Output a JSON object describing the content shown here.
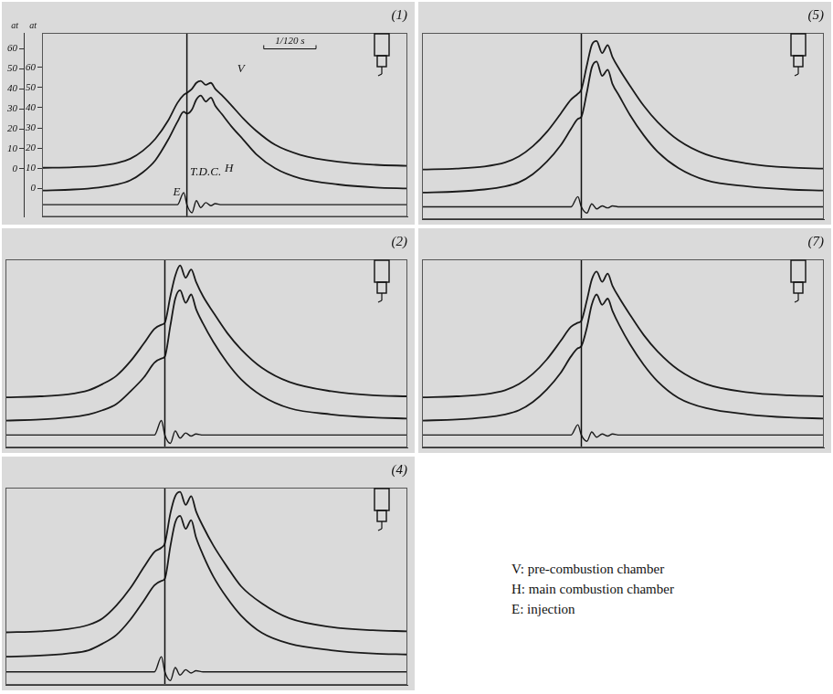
{
  "chart_data": [
    {
      "type": "line",
      "title": "(1)",
      "x": [
        -23,
        -18,
        -14,
        -11,
        -9,
        -7,
        -5,
        -3,
        -1.5,
        -0.5,
        0,
        0.8,
        1.5,
        2.2,
        3,
        3.8,
        4.5,
        5.5,
        7,
        9,
        11,
        14,
        18,
        24,
        30,
        35
      ],
      "xlim": [
        -23,
        35
      ],
      "xticks": [],
      "ylim": [
        -24,
        68
      ],
      "yticks": [
        0,
        10,
        20,
        30,
        40,
        50,
        60
      ],
      "ylabel": "at",
      "y2lim": [
        -14,
        77
      ],
      "y2ticks": [
        0,
        10,
        20,
        30,
        40,
        50,
        60
      ],
      "y2label": "at",
      "tick_labels": "y",
      "grid": false,
      "vline_x": 0,
      "series": [
        {
          "name": "V",
          "color": "#1a1a1a",
          "values": [
            0.5,
            0.8,
            1.5,
            3,
            5,
            9,
            15,
            24,
            33,
            37,
            38,
            40,
            43,
            44,
            42,
            43,
            40,
            37,
            32,
            25,
            19,
            12,
            7,
            3.5,
            2,
            1.5
          ]
        },
        {
          "name": "H",
          "color": "#1a1a1a",
          "axis": "y2",
          "values": [
            -1,
            -0.5,
            0.5,
            2,
            4,
            8,
            14,
            24,
            33,
            38,
            37,
            39,
            44,
            46,
            43,
            45,
            41,
            37,
            31,
            24,
            17,
            10,
            5,
            2,
            0.5,
            0
          ]
        },
        {
          "name": "E",
          "color": "#1a1a1a",
          "axis": "y2",
          "values": [
            -8,
            -8,
            -8,
            -8,
            -8,
            -8,
            -8,
            -8,
            -8,
            -2,
            -8,
            -12,
            -6,
            -9.5,
            -7,
            -8.5,
            -7.5,
            -8,
            -8,
            -8,
            -8,
            -8,
            -8,
            -8,
            -8,
            -8
          ]
        }
      ],
      "annotations": [
        {
          "text": "T.D.C.",
          "x": 0.5,
          "y": 8,
          "axis": "y2"
        },
        {
          "text": "E",
          "x": -2.2,
          "y": -2,
          "axis": "y2"
        },
        {
          "text": "V",
          "x": 8,
          "y": 50,
          "axis": "y"
        },
        {
          "text": "H",
          "x": 6,
          "y": 10,
          "axis": "y2"
        },
        {
          "text": "1/120 s",
          "x0": 12.2,
          "x1": 20.5,
          "y": 60,
          "axis": "y"
        }
      ]
    },
    {
      "type": "line",
      "title": "(5)",
      "x": [
        -23,
        -18,
        -14,
        -11,
        -9,
        -7,
        -5,
        -3,
        -1.5,
        -0.5,
        0,
        0.8,
        1.5,
        2.2,
        3,
        3.8,
        4.5,
        5.5,
        7,
        9,
        11,
        14,
        18,
        24,
        30,
        35
      ],
      "xlim": [
        -23,
        35
      ],
      "xticks": [],
      "ylim": [
        -24,
        68
      ],
      "yticks": [],
      "y2lim": [
        -14,
        77
      ],
      "y2ticks": [],
      "tick_labels": false,
      "grid": false,
      "vline_x": 0,
      "series": [
        {
          "name": "V",
          "color": "#1a1a1a",
          "values": [
            0.5,
            1,
            2,
            4,
            7,
            12,
            19,
            28,
            35,
            38,
            40,
            52,
            62,
            64,
            58,
            62,
            56,
            50,
            42,
            32,
            24,
            15,
            8,
            3.5,
            1.5,
            1
          ]
        },
        {
          "name": "H",
          "color": "#1a1a1a",
          "axis": "y2",
          "values": [
            -1,
            -0.5,
            0.5,
            2,
            4,
            8,
            14,
            22,
            30,
            35,
            36,
            48,
            60,
            63,
            56,
            59,
            52,
            46,
            37,
            27,
            19,
            11,
            5,
            2,
            0.5,
            0
          ]
        },
        {
          "name": "E",
          "color": "#1a1a1a",
          "axis": "y2",
          "values": [
            -8,
            -8,
            -8,
            -8,
            -8,
            -8,
            -8,
            -8,
            -8,
            -3,
            -8,
            -11,
            -6.5,
            -9,
            -7.5,
            -8.5,
            -7.5,
            -8,
            -8,
            -8,
            -8,
            -8,
            -8,
            -8,
            -8,
            -8
          ]
        }
      ]
    },
    {
      "type": "line",
      "title": "(2)",
      "x": [
        -23,
        -18,
        -14,
        -11,
        -9,
        -7,
        -5,
        -3,
        -1.5,
        -0.5,
        0,
        0.8,
        1.5,
        2.2,
        3,
        3.8,
        4.5,
        5.5,
        7,
        9,
        11,
        14,
        18,
        24,
        30,
        35
      ],
      "xlim": [
        -23,
        35
      ],
      "xticks": [],
      "ylim": [
        -24,
        68
      ],
      "yticks": [],
      "y2lim": [
        -14,
        77
      ],
      "y2ticks": [],
      "tick_labels": false,
      "grid": false,
      "vline_x": 0,
      "series": [
        {
          "name": "V",
          "color": "#1a1a1a",
          "values": [
            0.5,
            1,
            2,
            4,
            7,
            11,
            18,
            27,
            34,
            36,
            37,
            50,
            60,
            65,
            59,
            63,
            57,
            50,
            42,
            32,
            24,
            15,
            8,
            3.5,
            1.5,
            1
          ]
        },
        {
          "name": "H",
          "color": "#1a1a1a",
          "axis": "y2",
          "values": [
            -1,
            -0.5,
            0.5,
            2,
            4,
            7,
            13,
            20,
            27,
            29,
            30,
            45,
            58,
            62,
            56,
            60,
            53,
            46,
            37,
            27,
            19,
            11,
            5,
            2,
            0.5,
            0
          ]
        },
        {
          "name": "E",
          "color": "#1a1a1a",
          "axis": "y2",
          "values": [
            -8,
            -8,
            -8,
            -8,
            -8,
            -8,
            -8,
            -8,
            -8,
            -1,
            -8,
            -12,
            -6,
            -9.5,
            -7,
            -8.5,
            -7.5,
            -8,
            -8,
            -8,
            -8,
            -8,
            -8,
            -8,
            -8,
            -8
          ]
        }
      ]
    },
    {
      "type": "line",
      "title": "(7)",
      "x": [
        -23,
        -18,
        -14,
        -11,
        -9,
        -7,
        -5,
        -3,
        -1.5,
        -0.5,
        0,
        0.8,
        1.5,
        2.2,
        3,
        3.8,
        4.5,
        5.5,
        7,
        9,
        11,
        14,
        18,
        24,
        30,
        35
      ],
      "xlim": [
        -23,
        35
      ],
      "xticks": [],
      "ylim": [
        -24,
        68
      ],
      "yticks": [],
      "y2lim": [
        -14,
        77
      ],
      "y2ticks": [],
      "tick_labels": false,
      "grid": false,
      "vline_x": 0,
      "series": [
        {
          "name": "V",
          "color": "#1a1a1a",
          "values": [
            0.5,
            1,
            2,
            4,
            7,
            12,
            19,
            28,
            35,
            37,
            38,
            48,
            58,
            62,
            57,
            61,
            55,
            49,
            41,
            31,
            23,
            14,
            7,
            3,
            1.5,
            1
          ]
        },
        {
          "name": "H",
          "color": "#1a1a1a",
          "axis": "y2",
          "values": [
            -1,
            -0.5,
            0.5,
            2,
            4,
            8,
            14,
            22,
            30,
            34,
            35,
            44,
            55,
            60,
            55,
            58,
            52,
            45,
            36,
            26,
            18,
            10,
            5,
            2,
            0.5,
            0
          ]
        },
        {
          "name": "E",
          "color": "#1a1a1a",
          "axis": "y2",
          "values": [
            -8,
            -8,
            -8,
            -8,
            -8,
            -8,
            -8,
            -8,
            -8,
            -3,
            -8,
            -11,
            -6.5,
            -9,
            -7.5,
            -8.5,
            -7.5,
            -8,
            -8,
            -8,
            -8,
            -8,
            -8,
            -8,
            -8,
            -8
          ]
        }
      ]
    },
    {
      "type": "line",
      "title": "(4)",
      "x": [
        -23,
        -18,
        -14,
        -11,
        -9,
        -7,
        -5,
        -3,
        -1.5,
        -0.5,
        0,
        0.8,
        1.5,
        2.2,
        3,
        3.8,
        4.5,
        5.5,
        7,
        9,
        11,
        14,
        18,
        24,
        30,
        35
      ],
      "xlim": [
        -23,
        35
      ],
      "xticks": [],
      "ylim": [
        -24,
        68
      ],
      "yticks": [],
      "y2lim": [
        -14,
        77
      ],
      "y2ticks": [],
      "tick_labels": false,
      "grid": false,
      "vline_x": 0,
      "series": [
        {
          "name": "V",
          "color": "#1a1a1a",
          "values": [
            0.5,
            1,
            2,
            4,
            7,
            13,
            21,
            31,
            38,
            40,
            42,
            56,
            64,
            66,
            60,
            64,
            57,
            50,
            41,
            31,
            22,
            14,
            7,
            3,
            1.5,
            1
          ]
        },
        {
          "name": "H",
          "color": "#1a1a1a",
          "axis": "y2",
          "values": [
            -1,
            -0.5,
            0.5,
            2,
            5,
            9,
            16,
            25,
            32,
            34,
            35,
            50,
            61,
            64,
            58,
            62,
            54,
            46,
            36,
            26,
            18,
            10,
            5,
            2,
            0.5,
            0
          ]
        },
        {
          "name": "E",
          "color": "#1a1a1a",
          "axis": "y2",
          "values": [
            -8,
            -8,
            -8,
            -8,
            -8,
            -8,
            -8,
            -8,
            -8,
            -1,
            -8,
            -12,
            -6,
            -9.5,
            -7,
            -8.5,
            -7.5,
            -8,
            -8,
            -8,
            -8,
            -8,
            -8,
            -8,
            -8,
            -8
          ]
        }
      ]
    }
  ],
  "key": [
    "V: pre-combustion chamber",
    "H: main combustion chamber",
    "E: injection"
  ]
}
